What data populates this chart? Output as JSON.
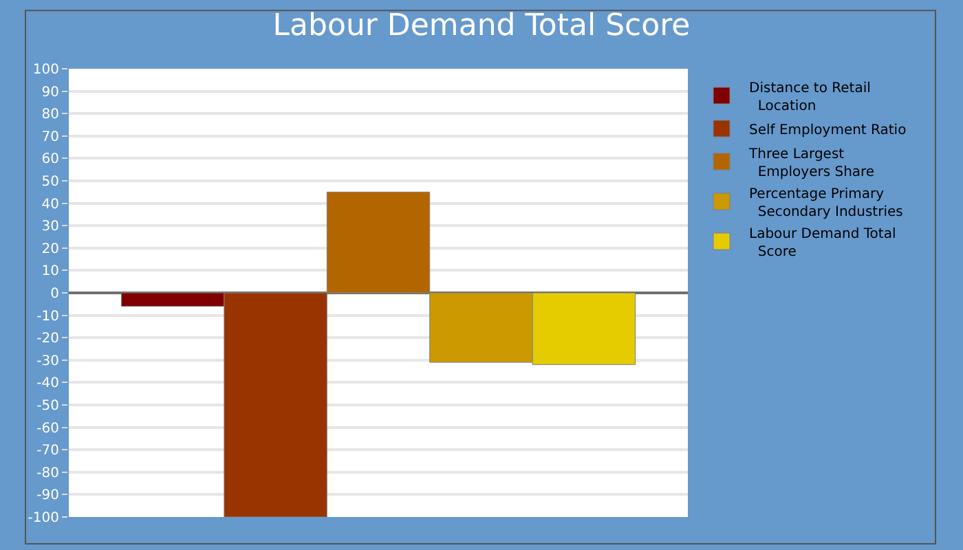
{
  "chart_data": {
    "type": "bar",
    "title": "Labour Demand Total Score",
    "categories": [
      null
    ],
    "series": [
      {
        "name": "Distance to Retail Location",
        "color": "#800000",
        "values": [
          -6
        ]
      },
      {
        "name": "Self Employment Ratio",
        "color": "#993300",
        "values": [
          -100
        ]
      },
      {
        "name": "Three Largest Employers Share",
        "color": "#b36600",
        "values": [
          45
        ]
      },
      {
        "name": "Percentage Primary Secondary Industries",
        "color": "#cc9900",
        "values": [
          -31
        ]
      },
      {
        "name": "Labour Demand Total Score",
        "color": "#e5cc00",
        "values": [
          -32
        ]
      }
    ],
    "ylim": [
      -100,
      100
    ],
    "yticks": [
      -100,
      -90,
      -80,
      -70,
      -60,
      -50,
      -40,
      -30,
      -20,
      -10,
      0,
      10,
      20,
      30,
      40,
      50,
      60,
      70,
      80,
      90,
      100
    ],
    "grid": true,
    "legend": "top right"
  }
}
